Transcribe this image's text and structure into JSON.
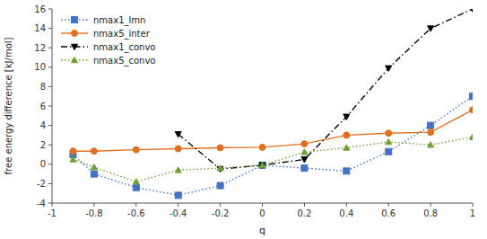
{
  "chart_data": {
    "type": "line",
    "xlabel": "q",
    "ylabel": "free energy difference [kJ/mol]",
    "xlim": [
      -1,
      1
    ],
    "ylim": [
      -4,
      16
    ],
    "xticks": [
      -1,
      -0.8,
      -0.6,
      -0.4,
      -0.2,
      0,
      0.2,
      0.4,
      0.6,
      0.8,
      1
    ],
    "yticks": [
      -4,
      -2,
      0,
      2,
      4,
      6,
      8,
      10,
      12,
      14,
      16
    ],
    "legend": "upper left",
    "series": [
      {
        "name": "nmax1_lmn",
        "color": "#4472c4",
        "marker": "square",
        "line_style": "dotted",
        "x": [
          -0.9,
          -0.8,
          -0.6,
          -0.4,
          -0.2,
          0.0,
          0.2,
          0.4,
          0.6,
          0.8,
          1.0
        ],
        "values": [
          1.0,
          -1.0,
          -2.4,
          -3.2,
          -2.2,
          -0.1,
          -0.4,
          -0.7,
          1.3,
          4.0,
          7.0
        ]
      },
      {
        "name": "nmax5_inter",
        "color": "#e07020",
        "marker": "circle",
        "line_style": "solid",
        "x": [
          -0.9,
          -0.8,
          -0.6,
          -0.4,
          -0.2,
          0.0,
          0.2,
          0.4,
          0.6,
          0.8,
          1.0
        ],
        "values": [
          1.35,
          1.35,
          1.5,
          1.6,
          1.7,
          1.75,
          2.1,
          3.0,
          3.2,
          3.3,
          5.6
        ]
      },
      {
        "name": "nmax1_convo",
        "color": "#000000",
        "marker": "triangle-down",
        "line_style": "dashdot",
        "x": [
          -0.4,
          -0.2,
          0.0,
          0.2,
          0.4,
          0.6,
          0.8,
          1.0
        ],
        "values": [
          3.1,
          -0.5,
          -0.1,
          0.5,
          4.9,
          9.9,
          14.0,
          16.0
        ]
      },
      {
        "name": "nmax5_convo",
        "color": "#70a030",
        "marker": "triangle-up",
        "line_style": "dotted",
        "x": [
          -0.9,
          -0.8,
          -0.6,
          -0.4,
          -0.2,
          0.0,
          0.2,
          0.4,
          0.6,
          0.8,
          1.0
        ],
        "values": [
          0.5,
          -0.3,
          -1.8,
          -0.6,
          -0.4,
          -0.1,
          1.25,
          1.7,
          2.3,
          2.0,
          2.8
        ]
      }
    ]
  }
}
